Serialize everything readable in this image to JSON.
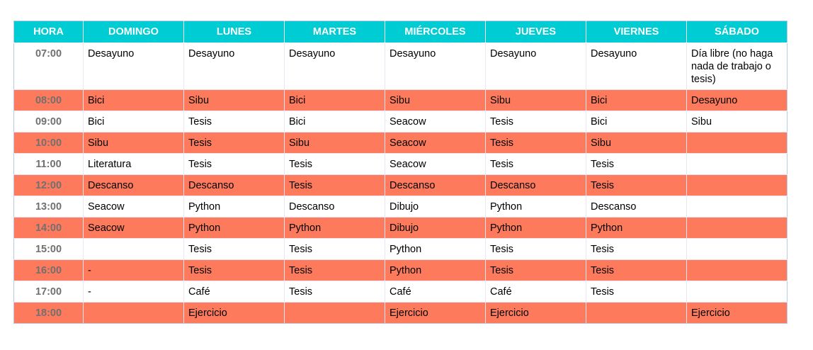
{
  "colors": {
    "header_bg": "#00ccd3",
    "header_text": "#ffffff",
    "highlight_row": "#fe7a5c",
    "plain_row": "#ffffff",
    "time_text": "#707070"
  },
  "table": {
    "headers": [
      "HORA",
      "DOMINGO",
      "LUNES",
      "MARTES",
      "MIÉRCOLES",
      "JUEVES",
      "VIERNES",
      "SÁBADO"
    ],
    "rows": [
      {
        "hora": "07:00",
        "highlight": false,
        "cells": [
          "Desayuno",
          "Desayuno",
          "Desayuno",
          "Desayuno",
          "Desayuno",
          "Desayuno",
          "Día libre (no haga nada de trabajo o tesis)"
        ]
      },
      {
        "hora": "08:00",
        "highlight": true,
        "cells": [
          "Bici",
          "Sibu",
          "Bici",
          "Sibu",
          "Sibu",
          "Bici",
          "Desayuno"
        ]
      },
      {
        "hora": "09:00",
        "highlight": false,
        "cells": [
          "Bici",
          "Tesis",
          "Bici",
          "Seacow",
          "Tesis",
          "Bici",
          "Sibu"
        ]
      },
      {
        "hora": "10:00",
        "highlight": true,
        "cells": [
          "Sibu",
          "Tesis",
          "Sibu",
          "Seacow",
          "Tesis",
          "Sibu",
          ""
        ]
      },
      {
        "hora": "11:00",
        "highlight": false,
        "cells": [
          "Literatura",
          "Tesis",
          "Tesis",
          "Seacow",
          "Tesis",
          "Tesis",
          ""
        ]
      },
      {
        "hora": "12:00",
        "highlight": true,
        "cells": [
          "Descanso",
          "Descanso",
          "Tesis",
          "Descanso",
          "Descanso",
          " Tesis",
          ""
        ]
      },
      {
        "hora": "13:00",
        "highlight": false,
        "cells": [
          "Seacow",
          "Python",
          "Descanso",
          "Dibujo",
          "Python",
          "Descanso",
          ""
        ]
      },
      {
        "hora": "14:00",
        "highlight": true,
        "cells": [
          "Seacow",
          "Python",
          "Python",
          "Dibujo",
          "Python",
          "Python",
          ""
        ]
      },
      {
        "hora": "15:00",
        "highlight": false,
        "cells": [
          "",
          "Tesis",
          "Tesis",
          "Python",
          "Tesis",
          "Tesis",
          ""
        ]
      },
      {
        "hora": "16:00",
        "highlight": true,
        "cells": [
          "-",
          "Tesis",
          "Tesis",
          "Python",
          "Tesis",
          "Tesis",
          ""
        ]
      },
      {
        "hora": "17:00",
        "highlight": false,
        "cells": [
          "-",
          "Café",
          "Tesis",
          "Café",
          "Café",
          "Tesis",
          ""
        ]
      },
      {
        "hora": "18:00",
        "highlight": true,
        "cells": [
          "",
          "Ejercicio",
          "",
          "Ejercicio",
          "Ejercicio",
          "",
          "Ejercicio"
        ]
      }
    ]
  }
}
